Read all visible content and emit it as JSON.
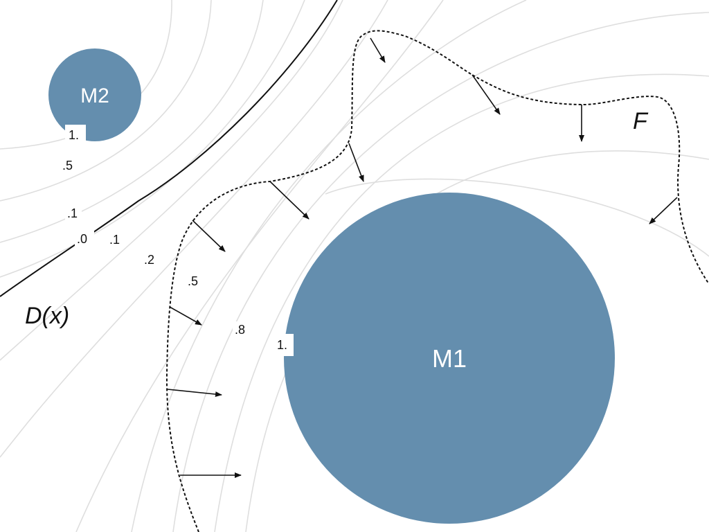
{
  "masses": {
    "m1": "M1",
    "m2": "M2"
  },
  "boundary_label": "D(x)",
  "front_label": "F",
  "contour_labels": {
    "m2_one": "1.",
    "m2_half": ".5",
    "left_point_one": ".1",
    "zero": ".0",
    "right_point_one": ".1",
    "point_two": ".2",
    "right_half": ".5",
    "point_eight": ".8",
    "m1_one": "1."
  },
  "colors": {
    "mass_fill": "#648eae",
    "contour_line": "#dedede",
    "ink": "#111111"
  }
}
